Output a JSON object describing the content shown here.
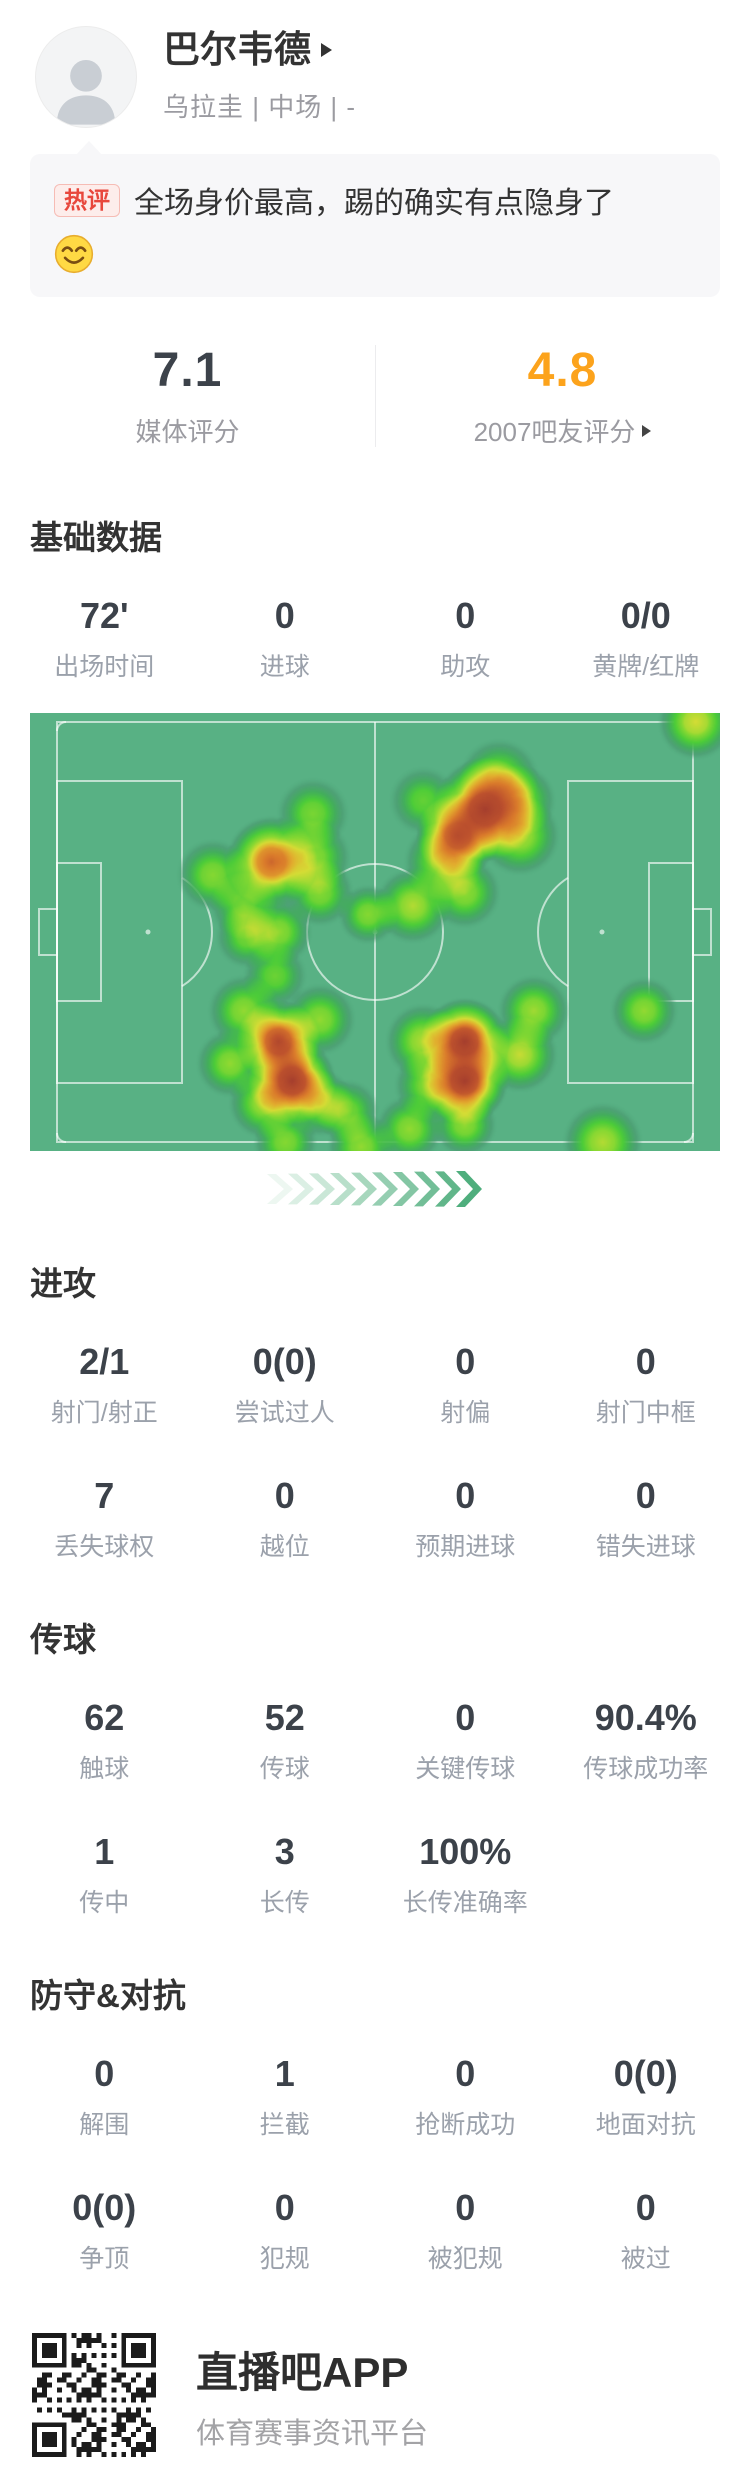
{
  "header": {
    "player_name": "巴尔韦德",
    "player_info": "乌拉圭 | 中场 | -"
  },
  "hot_comment": {
    "badge": "热评",
    "text": "全场身价最高，踢的确实有点隐身了",
    "emoji_icon": "smirk-smiley"
  },
  "ratings": {
    "media": {
      "value": "7.1",
      "label": "媒体评分"
    },
    "fans": {
      "value": "4.8",
      "label": "2007吧友评分",
      "accent_color": "#FCA31C",
      "arrow_icon": "triangle-right"
    }
  },
  "stats": {
    "basic": {
      "title": "基础数据",
      "rows": [
        [
          {
            "value": "72'",
            "label": "出场时间"
          },
          {
            "value": "0",
            "label": "进球"
          },
          {
            "value": "0",
            "label": "助攻"
          },
          {
            "value": "0/0",
            "label": "黄牌/红牌"
          }
        ]
      ]
    },
    "attack": {
      "title": "进攻",
      "rows": [
        [
          {
            "value": "2/1",
            "label": "射门/射正"
          },
          {
            "value": "0(0)",
            "label": "尝试过人"
          },
          {
            "value": "0",
            "label": "射偏"
          },
          {
            "value": "0",
            "label": "射门中框"
          }
        ],
        [
          {
            "value": "7",
            "label": "丢失球权"
          },
          {
            "value": "0",
            "label": "越位"
          },
          {
            "value": "0",
            "label": "预期进球"
          },
          {
            "value": "0",
            "label": "错失进球"
          }
        ]
      ]
    },
    "passing": {
      "title": "传球",
      "rows": [
        [
          {
            "value": "62",
            "label": "触球"
          },
          {
            "value": "52",
            "label": "传球"
          },
          {
            "value": "0",
            "label": "关键传球"
          },
          {
            "value": "90.4%",
            "label": "传球成功率"
          }
        ],
        [
          {
            "value": "1",
            "label": "传中"
          },
          {
            "value": "3",
            "label": "长传"
          },
          {
            "value": "100%",
            "label": "长传准确率"
          }
        ]
      ]
    },
    "defense": {
      "title": "防守&对抗",
      "rows": [
        [
          {
            "value": "0",
            "label": "解围"
          },
          {
            "value": "1",
            "label": "拦截"
          },
          {
            "value": "0",
            "label": "抢断成功"
          },
          {
            "value": "0(0)",
            "label": "地面对抗"
          }
        ],
        [
          {
            "value": "0(0)",
            "label": "争顶"
          },
          {
            "value": "0",
            "label": "犯规"
          },
          {
            "value": "0",
            "label": "被犯规"
          },
          {
            "value": "0",
            "label": "被过"
          }
        ]
      ]
    }
  },
  "chart_data": {
    "type": "heatmap",
    "description": "player-position-heatmap-on-football-pitch",
    "field_color": "#58B184",
    "line_color": "rgba(255,255,255,0.62)",
    "palette": [
      {
        "t": 0.0,
        "c": "#4FA578",
        "a": 0
      },
      {
        "t": 0.1,
        "c": "#47956C",
        "a": 0.55
      },
      {
        "t": 0.22,
        "c": "#3FAE53",
        "a": 0.85
      },
      {
        "t": 0.34,
        "c": "#4CCC38",
        "a": 1
      },
      {
        "t": 0.48,
        "c": "#86D832",
        "a": 1
      },
      {
        "t": 0.6,
        "c": "#D5DC35",
        "a": 1
      },
      {
        "t": 0.7,
        "c": "#E2AC2E",
        "a": 1
      },
      {
        "t": 0.8,
        "c": "#DA7B2B",
        "a": 1
      },
      {
        "t": 0.9,
        "c": "#BE532D",
        "a": 1
      },
      {
        "t": 1.0,
        "c": "#A53E2D",
        "a": 1
      }
    ],
    "points": [
      [
        66,
        22,
        52,
        1.0
      ],
      [
        62,
        28,
        42,
        0.88
      ],
      [
        68,
        15,
        40,
        0.5
      ],
      [
        71,
        28,
        40,
        0.55
      ],
      [
        60,
        34,
        40,
        0.55
      ],
      [
        63,
        41,
        36,
        0.5
      ],
      [
        71,
        20,
        36,
        0.5
      ],
      [
        41,
        23,
        36,
        0.45
      ],
      [
        57,
        20,
        34,
        0.4
      ],
      [
        96.5,
        2,
        38,
        0.6
      ],
      [
        26.5,
        37,
        36,
        0.48
      ],
      [
        35,
        34,
        46,
        0.85
      ],
      [
        41,
        33,
        38,
        0.5
      ],
      [
        42,
        41,
        34,
        0.48
      ],
      [
        31,
        44,
        34,
        0.45
      ],
      [
        36,
        50,
        34,
        0.5
      ],
      [
        31.5,
        51,
        32,
        0.45
      ],
      [
        35.5,
        60,
        32,
        0.42
      ],
      [
        49,
        46,
        30,
        0.48
      ],
      [
        55.5,
        44,
        38,
        0.55
      ],
      [
        36,
        75,
        42,
        0.95
      ],
      [
        38,
        84,
        44,
        1.0
      ],
      [
        31,
        68,
        36,
        0.5
      ],
      [
        42,
        70,
        36,
        0.5
      ],
      [
        29,
        80,
        34,
        0.5
      ],
      [
        34,
        89,
        36,
        0.55
      ],
      [
        42,
        89,
        34,
        0.5
      ],
      [
        46,
        91,
        32,
        0.45
      ],
      [
        37,
        98,
        32,
        0.48
      ],
      [
        48,
        99,
        34,
        0.5
      ],
      [
        63,
        75,
        44,
        1.0
      ],
      [
        63,
        84,
        44,
        1.0
      ],
      [
        57,
        75,
        38,
        0.55
      ],
      [
        58,
        85,
        36,
        0.5
      ],
      [
        71,
        78,
        38,
        0.58
      ],
      [
        73,
        68,
        36,
        0.52
      ],
      [
        63,
        94,
        32,
        0.5
      ],
      [
        55,
        95,
        34,
        0.5
      ],
      [
        89,
        68,
        34,
        0.5
      ],
      [
        83,
        98,
        40,
        0.55
      ]
    ]
  },
  "chevrons": {
    "count": 10,
    "start_color": "#EDF7F1",
    "end_color": "#4FAE7D"
  },
  "footer": {
    "app_name": "直播吧APP",
    "app_tagline": "体育赛事资讯平台",
    "qr_icon": "qr-code"
  }
}
